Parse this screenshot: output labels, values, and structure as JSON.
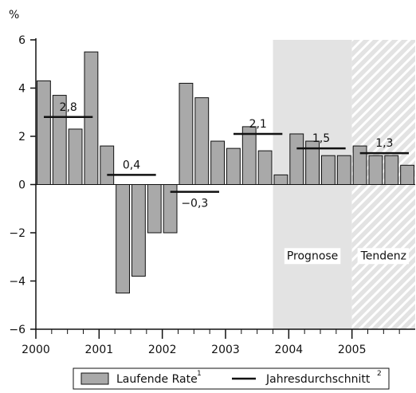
{
  "chart_data": {
    "type": "bar",
    "unit_label": "%",
    "ylim": [
      -6,
      6
    ],
    "yticks": [
      6,
      4,
      2,
      0,
      -2,
      -4,
      -6
    ],
    "ytick_labels": [
      "6",
      "4",
      "2",
      "0",
      "−2",
      "−4",
      "−6"
    ],
    "x_labels": [
      "2000",
      "2001",
      "2002",
      "2003",
      "2004",
      "2005"
    ],
    "quarters_per_year": 4,
    "series": [
      {
        "name": "Laufende Rate",
        "values": [
          4.3,
          3.7,
          2.3,
          5.5,
          1.6,
          -4.5,
          -3.8,
          -2.0,
          -2.0,
          4.2,
          3.6,
          1.8,
          1.5,
          2.4,
          1.4,
          0.4,
          2.1,
          1.8,
          1.2,
          1.2,
          1.6,
          1.2,
          1.2,
          0.8
        ],
        "color": "#a9a9a9"
      },
      {
        "name": "Jahresdurchschnitt",
        "values": [
          2.8,
          0.4,
          -0.3,
          2.1,
          1.5,
          1.3
        ],
        "labels": [
          "2,8",
          "0,4",
          "−0,3",
          "2,1",
          "1,5",
          "1,3"
        ],
        "color": "#111111"
      }
    ],
    "shaded_regions": [
      {
        "label": "Prognose",
        "start_year": 2003.75,
        "end_year": 2005.0,
        "fill": "#e3e3e3",
        "pattern": "solid"
      },
      {
        "label": "Tendenz",
        "start_year": 2005.0,
        "end_year": 2006.0,
        "fill": "#e3e3e3",
        "pattern": "hatch"
      }
    ],
    "legend": {
      "placement": "bottom-center",
      "bar_label": "Laufende Rate",
      "bar_superscript": "1",
      "line_label": "Jahresdurchschnitt",
      "line_superscript": "2"
    },
    "grid": false
  }
}
